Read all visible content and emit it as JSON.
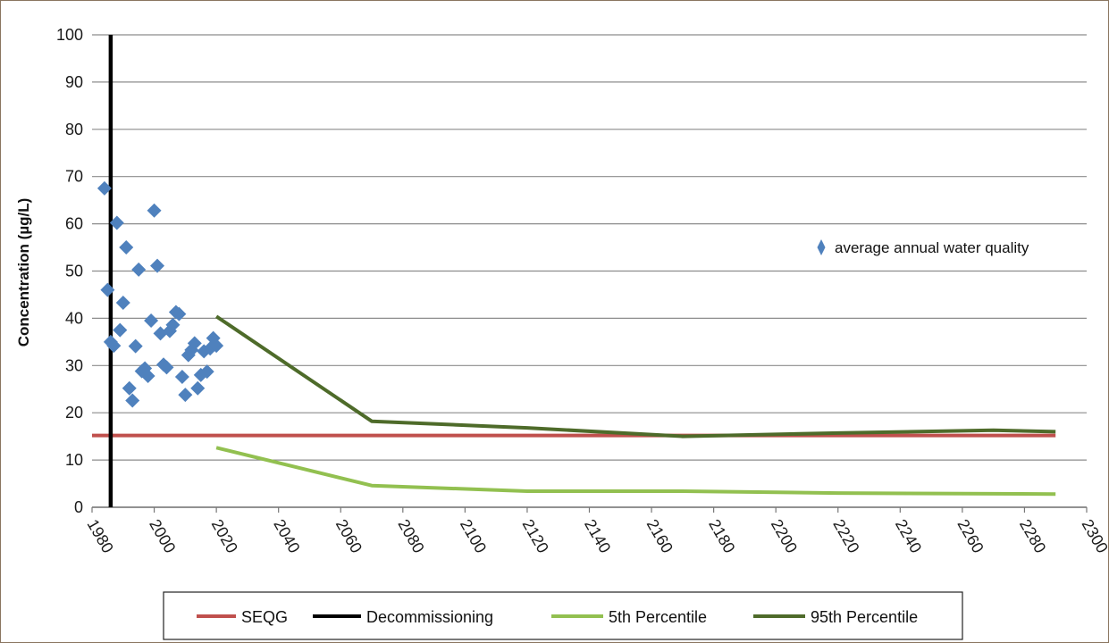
{
  "chart_data": {
    "type": "line",
    "title": "",
    "xlabel": "",
    "ylabel": "Concentration (µg/L)",
    "xlim": [
      1980,
      2300
    ],
    "ylim": [
      0,
      100
    ],
    "x_ticks": [
      1980,
      2000,
      2020,
      2040,
      2060,
      2080,
      2100,
      2120,
      2140,
      2160,
      2180,
      2200,
      2220,
      2240,
      2260,
      2280,
      2300
    ],
    "y_ticks": [
      0,
      10,
      20,
      30,
      40,
      50,
      60,
      70,
      80,
      90,
      100
    ],
    "grid": "horizontal",
    "legend_position": "bottom",
    "annotation": "average annual water quality",
    "series": [
      {
        "name": "SEQG",
        "color": "#c0504d",
        "kind": "line",
        "points": [
          [
            1980,
            15.2
          ],
          [
            2290,
            15.2
          ]
        ]
      },
      {
        "name": "Decommissioning",
        "color": "#000000",
        "kind": "vertical",
        "x": 1986
      },
      {
        "name": "5th Percentile",
        "color": "#92c050",
        "kind": "line",
        "points": [
          [
            2020,
            12.6
          ],
          [
            2070,
            4.6
          ],
          [
            2120,
            3.4
          ],
          [
            2170,
            3.4
          ],
          [
            2220,
            3.0
          ],
          [
            2290,
            2.8
          ]
        ]
      },
      {
        "name": "95th Percentile",
        "color": "#4e6b2a",
        "kind": "line",
        "points": [
          [
            2020,
            40.4
          ],
          [
            2070,
            18.2
          ],
          [
            2120,
            16.8
          ],
          [
            2170,
            15.0
          ],
          [
            2220,
            15.7
          ],
          [
            2270,
            16.3
          ],
          [
            2290,
            16.0
          ]
        ]
      },
      {
        "name": "average annual water quality",
        "color": "#4f81bd",
        "kind": "scatter",
        "points": [
          [
            1984,
            67.5
          ],
          [
            1985,
            46.0
          ],
          [
            1986,
            35.0
          ],
          [
            1987,
            34.2
          ],
          [
            1988,
            60.2
          ],
          [
            1989,
            37.5
          ],
          [
            1990,
            43.3
          ],
          [
            1991,
            55.0
          ],
          [
            1992,
            25.2
          ],
          [
            1993,
            22.6
          ],
          [
            1994,
            34.1
          ],
          [
            1995,
            50.3
          ],
          [
            1996,
            28.8
          ],
          [
            1997,
            29.4
          ],
          [
            1998,
            27.8
          ],
          [
            1999,
            39.5
          ],
          [
            2000,
            62.8
          ],
          [
            2001,
            51.1
          ],
          [
            2002,
            36.8
          ],
          [
            2003,
            30.2
          ],
          [
            2004,
            29.6
          ],
          [
            2005,
            37.3
          ],
          [
            2006,
            38.6
          ],
          [
            2007,
            41.3
          ],
          [
            2008,
            40.9
          ],
          [
            2009,
            27.6
          ],
          [
            2010,
            23.8
          ],
          [
            2011,
            32.2
          ],
          [
            2012,
            33.3
          ],
          [
            2013,
            34.7
          ],
          [
            2014,
            25.2
          ],
          [
            2015,
            28.0
          ],
          [
            2016,
            33.0
          ],
          [
            2017,
            28.7
          ],
          [
            2018,
            33.6
          ],
          [
            2019,
            35.8
          ],
          [
            2020,
            34.2
          ]
        ]
      }
    ],
    "legend": [
      "SEQG",
      "Decommissioning",
      "5th Percentile",
      "95th Percentile"
    ]
  }
}
